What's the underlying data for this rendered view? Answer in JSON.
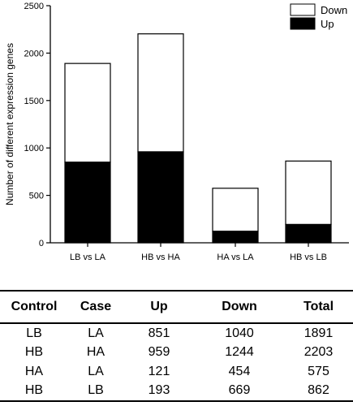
{
  "chart_data": {
    "type": "bar",
    "stacked": true,
    "categories": [
      "LB vs LA",
      "HB vs HA",
      "HA vs LA",
      "HB vs LB"
    ],
    "series": [
      {
        "name": "Up",
        "values": [
          851,
          959,
          121,
          193
        ],
        "color": "#000000"
      },
      {
        "name": "Down",
        "values": [
          1040,
          1244,
          454,
          669
        ],
        "color": "#ffffff"
      }
    ],
    "ylabel": "Number of different expression genes",
    "xlabel": "",
    "ylim": [
      0,
      2500
    ],
    "yticks": [
      0,
      500,
      1000,
      1500,
      2000,
      2500
    ],
    "grid": false,
    "legend": {
      "position": "top-right",
      "entries": [
        "Down",
        "Up"
      ]
    }
  },
  "table": {
    "headers": [
      "Control",
      "Case",
      "Up",
      "Down",
      "Total"
    ],
    "rows": [
      [
        "LB",
        "LA",
        "851",
        "1040",
        "1891"
      ],
      [
        "HB",
        "HA",
        "959",
        "1244",
        "2203"
      ],
      [
        "HA",
        "LA",
        "121",
        "454",
        "575"
      ],
      [
        "HB",
        "LB",
        "193",
        "669",
        "862"
      ]
    ]
  }
}
